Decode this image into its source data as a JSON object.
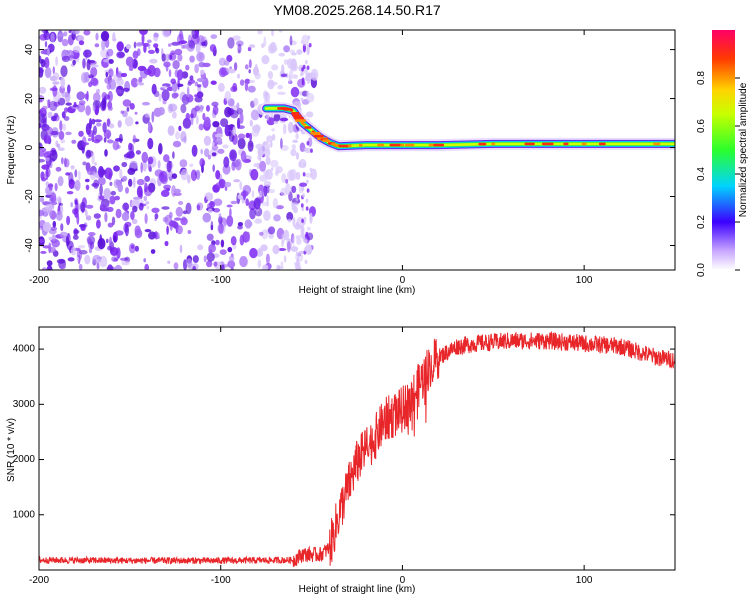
{
  "chart_data": [
    {
      "type": "heatmap",
      "title": "YM08.2025.268.14.50.R17",
      "xlabel": "Height of straight line (km)",
      "ylabel": "Frequency (Hz)",
      "xlim": [
        -200,
        150
      ],
      "ylim": [
        -50,
        48
      ],
      "xticks": [
        -200,
        -100,
        0,
        100
      ],
      "yticks": [
        -40,
        -20,
        0,
        20,
        40
      ],
      "colorbar": {
        "label": "Normalized spectral amplitude",
        "range": [
          0,
          1
        ],
        "ticks": [
          "0.0",
          "0.2",
          "0.4",
          "0.6",
          "0.8"
        ]
      },
      "noise_region": {
        "x_from": -200,
        "x_to": -60,
        "y_from": -50,
        "y_to": 48
      },
      "ridge": {
        "x": [
          -75,
          -65,
          -60,
          -55,
          -50,
          -45,
          -40,
          -35,
          -20,
          0,
          20,
          50,
          100,
          150
        ],
        "freq": [
          16,
          16,
          15,
          10,
          7,
          4,
          2,
          0.5,
          1,
          1,
          1,
          1.5,
          1.5,
          1.5
        ]
      }
    },
    {
      "type": "line",
      "xlabel": "Height of straight line (km)",
      "ylabel": "SNR (10 * v/v)",
      "xlim": [
        -200,
        150
      ],
      "ylim": [
        0,
        4400
      ],
      "xticks": [
        -200,
        -100,
        0,
        100
      ],
      "yticks": [
        1000,
        2000,
        3000,
        4000
      ],
      "series": [
        {
          "name": "SNR",
          "color": "#e8262a",
          "x": [
            -200,
            -150,
            -100,
            -60,
            -55,
            -45,
            -40,
            -35,
            -30,
            -25,
            -20,
            -15,
            -10,
            -5,
            0,
            5,
            10,
            15,
            20,
            25,
            30,
            40,
            60,
            80,
            100,
            120,
            130,
            140,
            150
          ],
          "y": [
            180,
            170,
            170,
            180,
            280,
            280,
            400,
            1000,
            1500,
            1950,
            2200,
            2400,
            2700,
            2800,
            2900,
            3100,
            3400,
            3700,
            3850,
            3950,
            4050,
            4100,
            4150,
            4150,
            4100,
            4050,
            3950,
            3850,
            3800
          ]
        }
      ]
    }
  ]
}
